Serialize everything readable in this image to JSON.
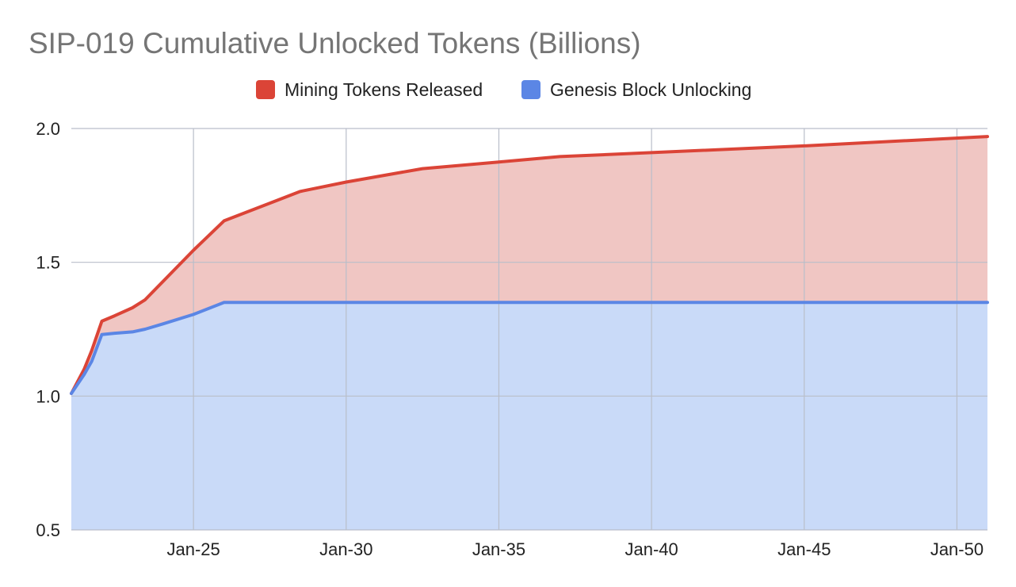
{
  "chart_data": {
    "type": "area",
    "stacked": true,
    "title": "SIP-019 Cumulative Unlocked Tokens (Billions)",
    "xlabel": "",
    "ylabel": "",
    "legend_position": "top",
    "grid": true,
    "ylim": [
      0.5,
      2.0
    ],
    "xlim": [
      "2021-01",
      "2051-01"
    ],
    "y_ticks": [
      "0.5",
      "1.0",
      "1.5",
      "2.0"
    ],
    "x_ticks": [
      {
        "label": "Jan-25",
        "date": "2025-01"
      },
      {
        "label": "Jan-30",
        "date": "2030-01"
      },
      {
        "label": "Jan-35",
        "date": "2035-01"
      },
      {
        "label": "Jan-40",
        "date": "2040-01"
      },
      {
        "label": "Jan-45",
        "date": "2045-01"
      },
      {
        "label": "Jan-50",
        "date": "2050-01"
      }
    ],
    "series": [
      {
        "name": "Genesis Block Unlocking",
        "color": "#5b86e5",
        "fill": "#c9daf8",
        "points": [
          {
            "x": "2021-01",
            "y": 1.01
          },
          {
            "x": "2021-06",
            "y": 1.08
          },
          {
            "x": "2021-09",
            "y": 1.13
          },
          {
            "x": "2022-01",
            "y": 1.23
          },
          {
            "x": "2022-06",
            "y": 1.235
          },
          {
            "x": "2023-01",
            "y": 1.24
          },
          {
            "x": "2023-06",
            "y": 1.25
          },
          {
            "x": "2024-01",
            "y": 1.27
          },
          {
            "x": "2025-01",
            "y": 1.305
          },
          {
            "x": "2026-01",
            "y": 1.35
          },
          {
            "x": "2030-01",
            "y": 1.35
          },
          {
            "x": "2035-01",
            "y": 1.35
          },
          {
            "x": "2040-01",
            "y": 1.35
          },
          {
            "x": "2045-01",
            "y": 1.35
          },
          {
            "x": "2051-01",
            "y": 1.35
          }
        ]
      },
      {
        "name": "Mining Tokens Released",
        "color": "#db4437",
        "fill": "#f0c6c3",
        "cumulative_points": [
          {
            "x": "2021-01",
            "y": 1.01
          },
          {
            "x": "2021-06",
            "y": 1.1
          },
          {
            "x": "2021-09",
            "y": 1.17
          },
          {
            "x": "2022-01",
            "y": 1.28
          },
          {
            "x": "2022-06",
            "y": 1.3
          },
          {
            "x": "2023-01",
            "y": 1.33
          },
          {
            "x": "2023-06",
            "y": 1.36
          },
          {
            "x": "2025-01",
            "y": 1.545
          },
          {
            "x": "2026-01",
            "y": 1.655
          },
          {
            "x": "2028-07",
            "y": 1.765
          },
          {
            "x": "2030-01",
            "y": 1.8
          },
          {
            "x": "2032-07",
            "y": 1.85
          },
          {
            "x": "2035-01",
            "y": 1.875
          },
          {
            "x": "2037-01",
            "y": 1.895
          },
          {
            "x": "2040-01",
            "y": 1.91
          },
          {
            "x": "2045-01",
            "y": 1.935
          },
          {
            "x": "2051-01",
            "y": 1.97
          }
        ]
      }
    ]
  }
}
